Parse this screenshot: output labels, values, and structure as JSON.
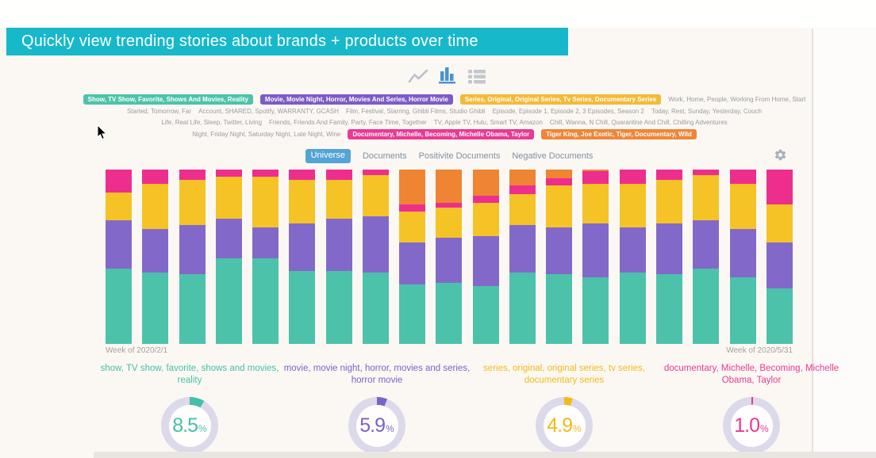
{
  "banner": {
    "text": "Quickly view trending stories about brands + products over time"
  },
  "colors": {
    "banner_bg": "#17b8ca",
    "tab_active_bg": "#54a4d6",
    "donut_ring": "#dcd9ea",
    "icon_active": "#4a94cc",
    "icon_inactive": "#bcc2c9"
  },
  "view_switcher": {
    "icons": [
      {
        "name": "line-chart-icon",
        "active": false
      },
      {
        "name": "bar-chart-icon",
        "active": true
      },
      {
        "name": "table-icon",
        "active": false
      }
    ]
  },
  "filters": {
    "rows": [
      [
        {
          "type": "pill",
          "color": "#4ec3a9",
          "label": "Show, TV Show, Favorite, Shows And Movies, Reality"
        },
        {
          "type": "pill",
          "color": "#7d5bc6",
          "label": "Movie, Movie Night, Horror, Movies And Series, Horror Movie"
        },
        {
          "type": "pill",
          "color": "#f3ba39",
          "label": "Series, Original, Original Series, Tv Series, Documentary Series"
        },
        {
          "type": "text",
          "label": "Work, Home, People, Working From Home, Start"
        }
      ],
      [
        {
          "type": "text",
          "label": "Started, Tomorrow, Far"
        },
        {
          "type": "text",
          "label": "Account, SHARED, Spotify, WARRANTY, GCASH"
        },
        {
          "type": "text",
          "label": "Film, Festival, Starring, Ghibli Films, Studio Ghibli"
        },
        {
          "type": "text",
          "label": "Episode, Episode 1, Episode 2, 3 Episodes, Season 2"
        },
        {
          "type": "text",
          "label": "Today, Rest, Sunday, Yesterday, Couch"
        }
      ],
      [
        {
          "type": "text",
          "label": "Life, Real Life, Sleep, Twitter, Living"
        },
        {
          "type": "text",
          "label": "Friends, Friends And Family, Party, Face Time, Together"
        },
        {
          "type": "text",
          "label": "TV, Apple TV, Hulu, Smart TV, Amazon"
        },
        {
          "type": "text",
          "label": "Chill, Wanna, N Chill, Quarantine And Chill, Chilling Adventures"
        }
      ],
      [
        {
          "type": "text",
          "label": "Night, Friday Night, Saturday Night, Late Night, Wine"
        },
        {
          "type": "pill",
          "color": "#ea3a92",
          "label": "Documentary, Michelle, Becoming, Michelle Obama, Taylor"
        },
        {
          "type": "pill",
          "color": "#ef8637",
          "label": "Tiger King, Joe Exotic, Tiger, Documentary, Wild"
        }
      ]
    ]
  },
  "tabs": {
    "items": [
      {
        "label": "Universe",
        "selected": true
      },
      {
        "label": "Documents",
        "selected": false
      },
      {
        "label": "Positivite Documents",
        "selected": false
      },
      {
        "label": "Negative Documents",
        "selected": false
      }
    ]
  },
  "settings": {
    "name": "settings-gear"
  },
  "chart_data": {
    "type": "bar",
    "subtype": "100-percent-stacked-vertical",
    "n_bars": 19,
    "x_start_label": "Week of 2020/2/1",
    "x_end_label": "Week of 2020/5/31",
    "ylim": [
      0,
      100
    ],
    "grid": false,
    "legend_position": "none",
    "series": [
      {
        "name": "show, TV show, favorite, shows and movies, reality",
        "color": "#4cc2ab",
        "values": [
          43,
          41,
          40,
          49,
          49,
          42,
          42,
          41,
          34,
          35,
          33,
          41,
          40,
          38,
          41,
          40,
          43,
          38,
          32
        ]
      },
      {
        "name": "movie, movie night, horror, movies and series, horror movie",
        "color": "#8269c9",
        "values": [
          28,
          25,
          28,
          23,
          18,
          27,
          30,
          32,
          24,
          26,
          29,
          27,
          27,
          31,
          26,
          29,
          28,
          28,
          26
        ]
      },
      {
        "name": "series, original, original series, tv series, documentary series",
        "color": "#f5c326",
        "values": [
          16,
          26,
          26,
          24,
          29,
          25,
          22,
          24,
          18,
          17,
          19,
          18,
          24,
          23,
          25,
          25,
          26,
          26,
          22
        ]
      },
      {
        "name": "documentary, Michelle, Becoming, Michelle Obama, Taylor",
        "color": "#ee2e8d",
        "values": [
          13,
          8,
          6,
          4,
          4,
          6,
          6,
          3,
          4,
          3,
          4,
          5,
          4,
          7,
          8,
          6,
          3,
          8,
          20
        ]
      },
      {
        "name": "Tiger King, Joe Exotic, Tiger, Documentary, Wild",
        "color": "#ef8433",
        "values": [
          0,
          0,
          0,
          0,
          0,
          0,
          0,
          0,
          20,
          19,
          15,
          9,
          5,
          1,
          0,
          0,
          0,
          0,
          0
        ]
      }
    ]
  },
  "axis": {
    "left_label": "Week of 2020/2/1",
    "right_label": "Week of 2020/5/31"
  },
  "summaries": [
    {
      "label": "show, TV show, favorite, shows and movies, reality",
      "value": "8.5",
      "unit": "%",
      "percent": 8.5,
      "color": "#45bfa6"
    },
    {
      "label": "movie, movie night, horror, movies and series, horror movie",
      "value": "5.9",
      "unit": "%",
      "percent": 5.9,
      "color": "#7a63c8"
    },
    {
      "label": "series, original, original series, tv series, documentary series",
      "value": "4.9",
      "unit": "%",
      "percent": 4.9,
      "color": "#f2bb16"
    },
    {
      "label": "documentary, Michelle, Becoming, Michelle Obama, Taylor",
      "value": "1.0",
      "unit": "%",
      "percent": 1.0,
      "color": "#e83a8e"
    }
  ]
}
